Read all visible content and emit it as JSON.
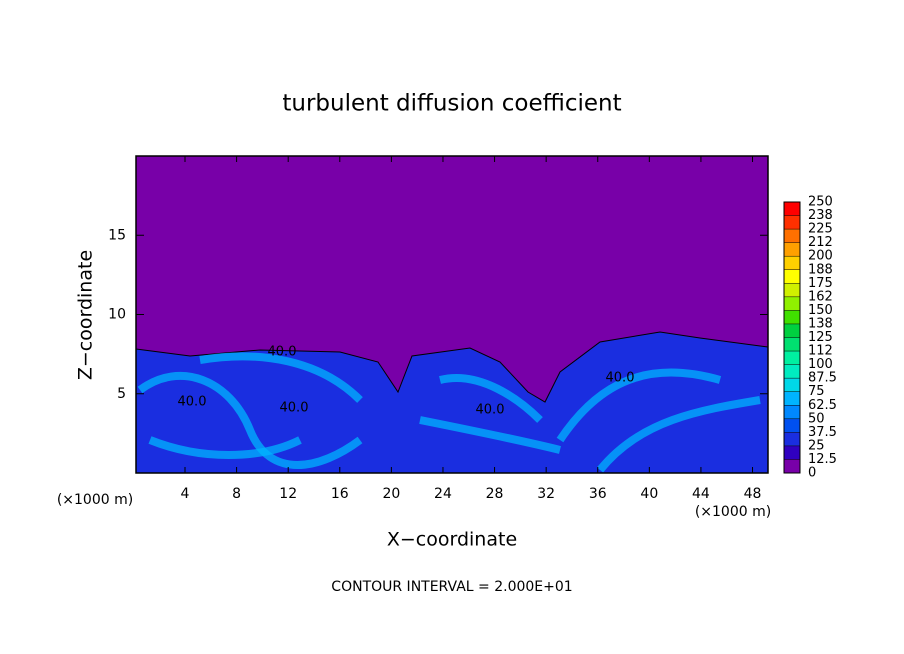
{
  "chart_data": {
    "type": "contour",
    "title": "turbulent diffusion coefficient",
    "xlabel": "X−coordinate",
    "ylabel": "Z−coordinate",
    "x_unit": "(×1000 m)",
    "z_unit": "(×1000 m)",
    "footer": "CONTOUR INTERVAL = 2.000E+01",
    "xlim": [
      0.2,
      49.2
    ],
    "xticks": [
      4,
      8,
      12,
      16,
      20,
      24,
      28,
      32,
      36,
      40,
      44,
      48
    ],
    "ylim": [
      0,
      20
    ],
    "yticks": [
      5,
      10,
      15
    ],
    "contour_labels": [
      {
        "value": 40,
        "label": "40.0"
      },
      {
        "value": 40,
        "label": "40.0"
      },
      {
        "value": 40,
        "label": "40.0"
      },
      {
        "value": 40,
        "label": "40.0"
      },
      {
        "value": 40,
        "label": "40.0"
      }
    ],
    "levels": [
      0,
      12.5,
      25,
      37.5,
      50,
      62.5,
      75,
      87.5,
      100,
      112,
      125,
      138,
      150,
      162,
      175,
      188,
      200,
      212,
      225,
      238,
      250
    ],
    "colors": [
      "#7800a8",
      "#3000c0",
      "#1a2ee0",
      "#0050f0",
      "#0088ff",
      "#00b4ff",
      "#00d8e8",
      "#00ecc0",
      "#00f0a0",
      "#00e070",
      "#00d040",
      "#40e000",
      "#90f000",
      "#d0f000",
      "#ffff00",
      "#ffd000",
      "#ffa000",
      "#ff7000",
      "#ff3000",
      "#ff0000"
    ]
  }
}
